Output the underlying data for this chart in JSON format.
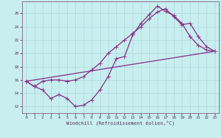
{
  "xlabel": "Windchill (Refroidissement éolien,°C)",
  "bg_color": "#c8eef0",
  "line_color": "#883388",
  "grid_color": "#a8d8da",
  "axis_color": "#886688",
  "text_color": "#553355",
  "xlim": [
    -0.5,
    23.5
  ],
  "ylim": [
    11.0,
    27.8
  ],
  "xticks": [
    0,
    1,
    2,
    3,
    4,
    5,
    6,
    7,
    8,
    9,
    10,
    11,
    12,
    13,
    14,
    15,
    16,
    17,
    18,
    19,
    20,
    21,
    22,
    23
  ],
  "yticks": [
    12,
    14,
    16,
    18,
    20,
    22,
    24,
    26
  ],
  "line1_x": [
    0,
    1,
    2,
    3,
    4,
    5,
    6,
    7,
    8,
    9,
    10,
    11,
    12,
    13,
    14,
    15,
    16,
    17,
    18,
    19,
    20,
    21,
    22,
    23
  ],
  "line1_y": [
    15.8,
    15.0,
    14.5,
    13.2,
    13.8,
    13.2,
    12.0,
    12.2,
    13.0,
    14.5,
    16.5,
    19.2,
    19.5,
    22.8,
    24.5,
    25.8,
    27.1,
    26.3,
    25.7,
    24.5,
    22.5,
    21.2,
    20.5,
    20.3
  ],
  "line2_x": [
    0,
    1,
    2,
    3,
    4,
    5,
    6,
    7,
    8,
    9,
    10,
    11,
    12,
    13,
    14,
    15,
    16,
    17,
    18,
    19,
    20,
    21,
    22,
    23
  ],
  "line2_y": [
    15.8,
    15.0,
    15.8,
    16.0,
    16.0,
    15.8,
    16.0,
    16.5,
    17.5,
    18.5,
    20.0,
    21.0,
    22.0,
    23.0,
    24.0,
    25.2,
    26.2,
    26.7,
    25.5,
    24.3,
    24.5,
    22.5,
    21.0,
    20.3
  ],
  "line3_x": [
    0,
    23
  ],
  "line3_y": [
    15.8,
    20.3
  ],
  "marker": "+",
  "markersize": 4,
  "linewidth": 1.0
}
